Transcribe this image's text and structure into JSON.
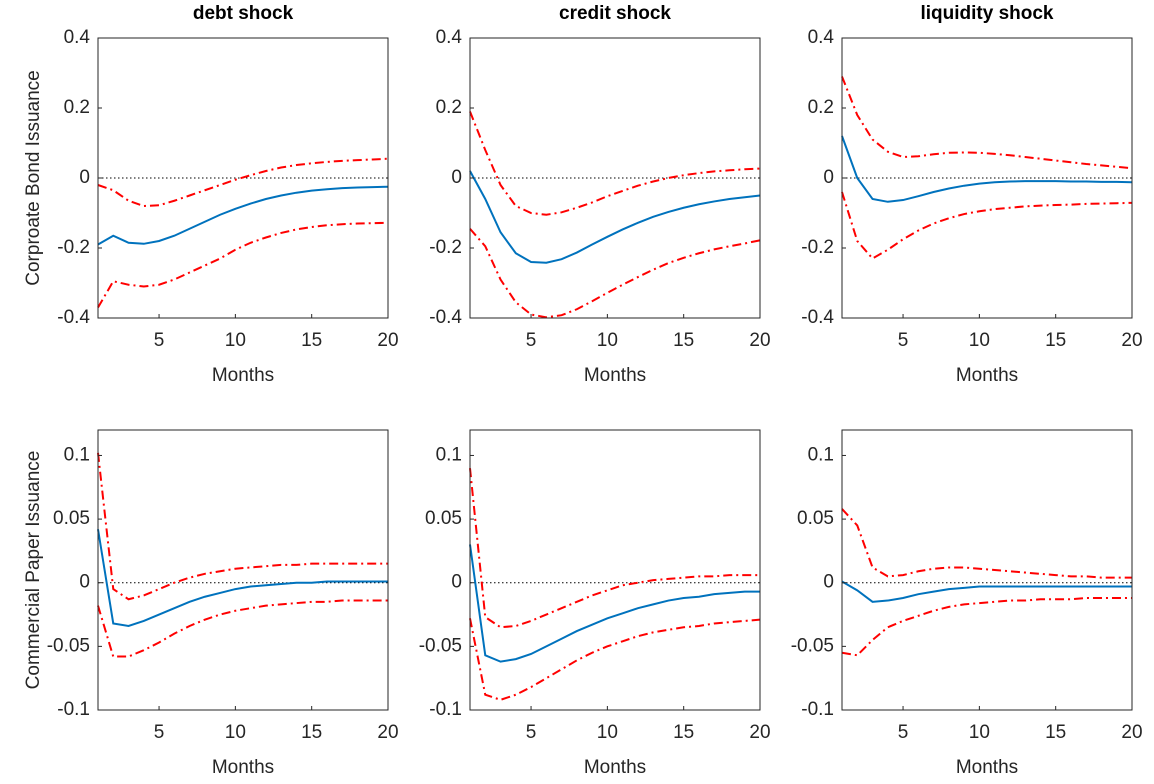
{
  "chart_data": [
    {
      "type": "line",
      "title": "debt shock",
      "ylabel": "Corproate Bond Issuance",
      "xlabel": "Months",
      "x": [
        1,
        2,
        3,
        4,
        5,
        6,
        7,
        8,
        9,
        10,
        11,
        12,
        13,
        14,
        15,
        16,
        17,
        18,
        19,
        20
      ],
      "xlim": [
        1,
        20
      ],
      "xticks": [
        5,
        10,
        15,
        20
      ],
      "ylim": [
        -0.4,
        0.4
      ],
      "yticks": [
        -0.4,
        -0.2,
        0,
        0.2,
        0.4
      ],
      "zero_line": 0,
      "series": [
        {
          "color": "#0072bd",
          "dash": "solid",
          "values": [
            -0.19,
            -0.165,
            -0.185,
            -0.188,
            -0.18,
            -0.165,
            -0.145,
            -0.125,
            -0.105,
            -0.088,
            -0.073,
            -0.06,
            -0.05,
            -0.042,
            -0.036,
            -0.032,
            -0.029,
            -0.027,
            -0.026,
            -0.025
          ]
        },
        {
          "color": "#ff0000",
          "dash": "dashdot",
          "values": [
            -0.02,
            -0.035,
            -0.065,
            -0.08,
            -0.078,
            -0.065,
            -0.05,
            -0.035,
            -0.02,
            -0.005,
            0.008,
            0.02,
            0.03,
            0.037,
            0.042,
            0.046,
            0.049,
            0.051,
            0.053,
            0.055
          ]
        },
        {
          "color": "#ff0000",
          "dash": "dashdot",
          "values": [
            -0.37,
            -0.295,
            -0.305,
            -0.31,
            -0.305,
            -0.29,
            -0.27,
            -0.25,
            -0.23,
            -0.205,
            -0.185,
            -0.17,
            -0.157,
            -0.147,
            -0.14,
            -0.135,
            -0.132,
            -0.13,
            -0.129,
            -0.128
          ]
        }
      ]
    },
    {
      "type": "line",
      "title": "credit shock",
      "xlabel": "Months",
      "x": [
        1,
        2,
        3,
        4,
        5,
        6,
        7,
        8,
        9,
        10,
        11,
        12,
        13,
        14,
        15,
        16,
        17,
        18,
        19,
        20
      ],
      "xlim": [
        1,
        20
      ],
      "xticks": [
        5,
        10,
        15,
        20
      ],
      "ylim": [
        -0.4,
        0.4
      ],
      "yticks": [
        -0.4,
        -0.2,
        0,
        0.2,
        0.4
      ],
      "zero_line": 0,
      "series": [
        {
          "color": "#0072bd",
          "dash": "solid",
          "values": [
            0.02,
            -0.06,
            -0.155,
            -0.215,
            -0.24,
            -0.242,
            -0.232,
            -0.213,
            -0.19,
            -0.168,
            -0.147,
            -0.128,
            -0.111,
            -0.097,
            -0.085,
            -0.075,
            -0.067,
            -0.06,
            -0.055,
            -0.05
          ]
        },
        {
          "color": "#ff0000",
          "dash": "dashdot",
          "values": [
            0.19,
            0.08,
            -0.02,
            -0.08,
            -0.1,
            -0.105,
            -0.098,
            -0.085,
            -0.07,
            -0.052,
            -0.037,
            -0.022,
            -0.01,
            0.0,
            0.008,
            0.014,
            0.019,
            0.022,
            0.025,
            0.027
          ]
        },
        {
          "color": "#ff0000",
          "dash": "dashdot",
          "values": [
            -0.145,
            -0.195,
            -0.29,
            -0.355,
            -0.39,
            -0.398,
            -0.392,
            -0.375,
            -0.352,
            -0.328,
            -0.305,
            -0.283,
            -0.262,
            -0.243,
            -0.228,
            -0.215,
            -0.204,
            -0.195,
            -0.187,
            -0.178
          ]
        }
      ]
    },
    {
      "type": "line",
      "title": "liquidity shock",
      "xlabel": "Months",
      "x": [
        1,
        2,
        3,
        4,
        5,
        6,
        7,
        8,
        9,
        10,
        11,
        12,
        13,
        14,
        15,
        16,
        17,
        18,
        19,
        20
      ],
      "xlim": [
        1,
        20
      ],
      "xticks": [
        5,
        10,
        15,
        20
      ],
      "ylim": [
        -0.4,
        0.4
      ],
      "yticks": [
        -0.4,
        -0.2,
        0,
        0.2,
        0.4
      ],
      "zero_line": 0,
      "series": [
        {
          "color": "#0072bd",
          "dash": "solid",
          "values": [
            0.12,
            0.0,
            -0.06,
            -0.068,
            -0.063,
            -0.052,
            -0.04,
            -0.03,
            -0.022,
            -0.016,
            -0.012,
            -0.01,
            -0.009,
            -0.009,
            -0.009,
            -0.01,
            -0.01,
            -0.011,
            -0.011,
            -0.012
          ]
        },
        {
          "color": "#ff0000",
          "dash": "dashdot",
          "values": [
            0.29,
            0.18,
            0.11,
            0.075,
            0.06,
            0.062,
            0.068,
            0.072,
            0.073,
            0.072,
            0.069,
            0.065,
            0.06,
            0.055,
            0.05,
            0.045,
            0.04,
            0.036,
            0.032,
            0.028
          ]
        },
        {
          "color": "#ff0000",
          "dash": "dashdot",
          "values": [
            -0.04,
            -0.18,
            -0.23,
            -0.205,
            -0.175,
            -0.15,
            -0.13,
            -0.115,
            -0.103,
            -0.095,
            -0.089,
            -0.085,
            -0.081,
            -0.079,
            -0.077,
            -0.076,
            -0.074,
            -0.073,
            -0.072,
            -0.071
          ]
        }
      ]
    },
    {
      "type": "line",
      "ylabel": "Commercial Paper Issuance",
      "xlabel": "Months",
      "x": [
        1,
        2,
        3,
        4,
        5,
        6,
        7,
        8,
        9,
        10,
        11,
        12,
        13,
        14,
        15,
        16,
        17,
        18,
        19,
        20
      ],
      "xlim": [
        1,
        20
      ],
      "xticks": [
        5,
        10,
        15,
        20
      ],
      "ylim": [
        -0.1,
        0.12
      ],
      "yticks": [
        -0.1,
        -0.05,
        0,
        0.05,
        0.1
      ],
      "zero_line": 0,
      "series": [
        {
          "color": "#0072bd",
          "dash": "solid",
          "values": [
            0.042,
            -0.032,
            -0.034,
            -0.03,
            -0.025,
            -0.02,
            -0.015,
            -0.011,
            -0.008,
            -0.005,
            -0.003,
            -0.002,
            -0.001,
            0.0,
            0.0,
            0.001,
            0.001,
            0.001,
            0.001,
            0.001
          ]
        },
        {
          "color": "#ff0000",
          "dash": "dashdot",
          "values": [
            0.102,
            -0.005,
            -0.013,
            -0.01,
            -0.005,
            0.0,
            0.004,
            0.007,
            0.009,
            0.011,
            0.012,
            0.013,
            0.014,
            0.014,
            0.015,
            0.015,
            0.015,
            0.015,
            0.015,
            0.015
          ]
        },
        {
          "color": "#ff0000",
          "dash": "dashdot",
          "values": [
            -0.018,
            -0.058,
            -0.058,
            -0.053,
            -0.047,
            -0.04,
            -0.034,
            -0.029,
            -0.025,
            -0.022,
            -0.02,
            -0.018,
            -0.017,
            -0.016,
            -0.015,
            -0.015,
            -0.014,
            -0.014,
            -0.014,
            -0.014
          ]
        }
      ]
    },
    {
      "type": "line",
      "xlabel": "Months",
      "x": [
        1,
        2,
        3,
        4,
        5,
        6,
        7,
        8,
        9,
        10,
        11,
        12,
        13,
        14,
        15,
        16,
        17,
        18,
        19,
        20
      ],
      "xlim": [
        1,
        20
      ],
      "xticks": [
        5,
        10,
        15,
        20
      ],
      "ylim": [
        -0.1,
        0.12
      ],
      "yticks": [
        -0.1,
        -0.05,
        0,
        0.05,
        0.1
      ],
      "zero_line": 0,
      "series": [
        {
          "color": "#0072bd",
          "dash": "solid",
          "values": [
            0.03,
            -0.057,
            -0.062,
            -0.06,
            -0.056,
            -0.05,
            -0.044,
            -0.038,
            -0.033,
            -0.028,
            -0.024,
            -0.02,
            -0.017,
            -0.014,
            -0.012,
            -0.011,
            -0.009,
            -0.008,
            -0.007,
            -0.007
          ]
        },
        {
          "color": "#ff0000",
          "dash": "dashdot",
          "values": [
            0.09,
            -0.027,
            -0.035,
            -0.034,
            -0.03,
            -0.025,
            -0.02,
            -0.015,
            -0.01,
            -0.006,
            -0.002,
            0.0,
            0.002,
            0.003,
            0.004,
            0.005,
            0.005,
            0.006,
            0.006,
            0.006
          ]
        },
        {
          "color": "#ff0000",
          "dash": "dashdot",
          "values": [
            -0.028,
            -0.088,
            -0.092,
            -0.088,
            -0.082,
            -0.075,
            -0.068,
            -0.061,
            -0.055,
            -0.05,
            -0.046,
            -0.042,
            -0.039,
            -0.037,
            -0.035,
            -0.034,
            -0.032,
            -0.031,
            -0.03,
            -0.029
          ]
        }
      ]
    },
    {
      "type": "line",
      "xlabel": "Months",
      "x": [
        1,
        2,
        3,
        4,
        5,
        6,
        7,
        8,
        9,
        10,
        11,
        12,
        13,
        14,
        15,
        16,
        17,
        18,
        19,
        20
      ],
      "xlim": [
        1,
        20
      ],
      "xticks": [
        5,
        10,
        15,
        20
      ],
      "ylim": [
        -0.1,
        0.12
      ],
      "yticks": [
        -0.1,
        -0.05,
        0,
        0.05,
        0.1
      ],
      "zero_line": 0,
      "series": [
        {
          "color": "#0072bd",
          "dash": "solid",
          "values": [
            0.001,
            -0.006,
            -0.015,
            -0.014,
            -0.012,
            -0.009,
            -0.007,
            -0.005,
            -0.004,
            -0.003,
            -0.003,
            -0.003,
            -0.003,
            -0.003,
            -0.003,
            -0.003,
            -0.003,
            -0.003,
            -0.003,
            -0.003
          ]
        },
        {
          "color": "#ff0000",
          "dash": "dashdot",
          "values": [
            0.058,
            0.045,
            0.012,
            0.005,
            0.006,
            0.009,
            0.011,
            0.012,
            0.012,
            0.011,
            0.01,
            0.009,
            0.008,
            0.007,
            0.006,
            0.005,
            0.005,
            0.004,
            0.004,
            0.004
          ]
        },
        {
          "color": "#ff0000",
          "dash": "dashdot",
          "values": [
            -0.055,
            -0.057,
            -0.045,
            -0.035,
            -0.03,
            -0.026,
            -0.022,
            -0.019,
            -0.017,
            -0.016,
            -0.015,
            -0.014,
            -0.014,
            -0.013,
            -0.013,
            -0.013,
            -0.012,
            -0.012,
            -0.012,
            -0.012
          ]
        }
      ]
    }
  ]
}
